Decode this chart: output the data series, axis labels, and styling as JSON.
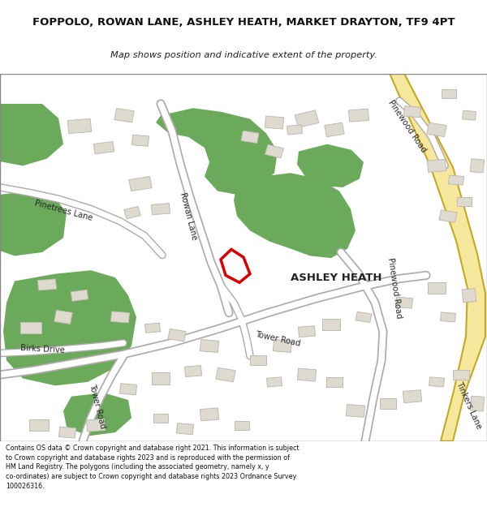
{
  "title": "FOPPOLO, ROWAN LANE, ASHLEY HEATH, MARKET DRAYTON, TF9 4PT",
  "subtitle": "Map shows position and indicative extent of the property.",
  "footer": "Contains OS data © Crown copyright and database right 2021. This information is subject\nto Crown copyright and database rights 2023 and is reproduced with the permission of\nHM Land Registry. The polygons (including the associated geometry, namely x, y\nco-ordinates) are subject to Crown copyright and database rights 2023 Ordnance Survey\n100026316.",
  "bg_color": "#ffffff",
  "map_bg": "#f0ede5",
  "road_yellow": "#f5e89c",
  "road_yellow_border": "#c8a820",
  "green_color": "#6aaa5a",
  "building_fill": "#dedad0",
  "building_border": "#c0bbb0",
  "red_color": "#dd0000"
}
